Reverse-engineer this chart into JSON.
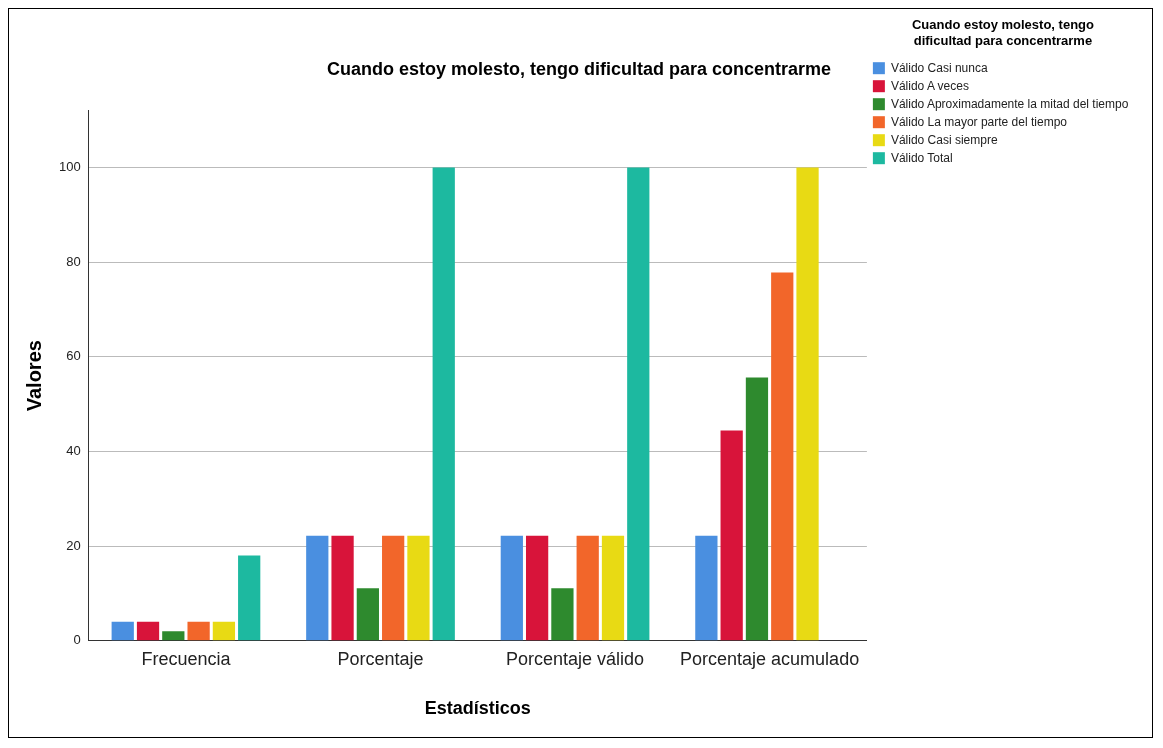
{
  "chart_data": {
    "type": "bar",
    "title": "Cuando estoy molesto, tengo dificultad para concentrarme",
    "xlabel": "Estadísticos",
    "ylabel": "Valores",
    "legend_title": "Cuando estoy molesto, tengo dificultad para concentrarme",
    "legend": "right",
    "grid": "y",
    "categories": [
      "Frecuencia",
      "Porcentaje",
      "Porcentaje válido",
      "Porcentaje acumulado"
    ],
    "ylim": [
      0,
      112
    ],
    "yticks": [
      0,
      20,
      40,
      60,
      80,
      100
    ],
    "series": [
      {
        "name": "Válido Casi nunca",
        "color": "#4a8fe0",
        "values": [
          4,
          22.2,
          22.2,
          22.2
        ]
      },
      {
        "name": "Válido A veces",
        "color": "#d8143a",
        "values": [
          4,
          22.2,
          22.2,
          44.4
        ]
      },
      {
        "name": "Válido Aproximadamente la mitad del tiempo",
        "color": "#2e8a2e",
        "values": [
          2,
          11.1,
          11.1,
          55.6
        ]
      },
      {
        "name": "Válido La mayor parte del tiempo",
        "color": "#f2662a",
        "values": [
          4,
          22.2,
          22.2,
          77.8
        ]
      },
      {
        "name": "Válido Casi siempre",
        "color": "#e8da14",
        "values": [
          4,
          22.2,
          22.2,
          100
        ]
      },
      {
        "name": "Válido Total",
        "color": "#1db9a0",
        "values": [
          18,
          100,
          100,
          null
        ]
      }
    ]
  }
}
